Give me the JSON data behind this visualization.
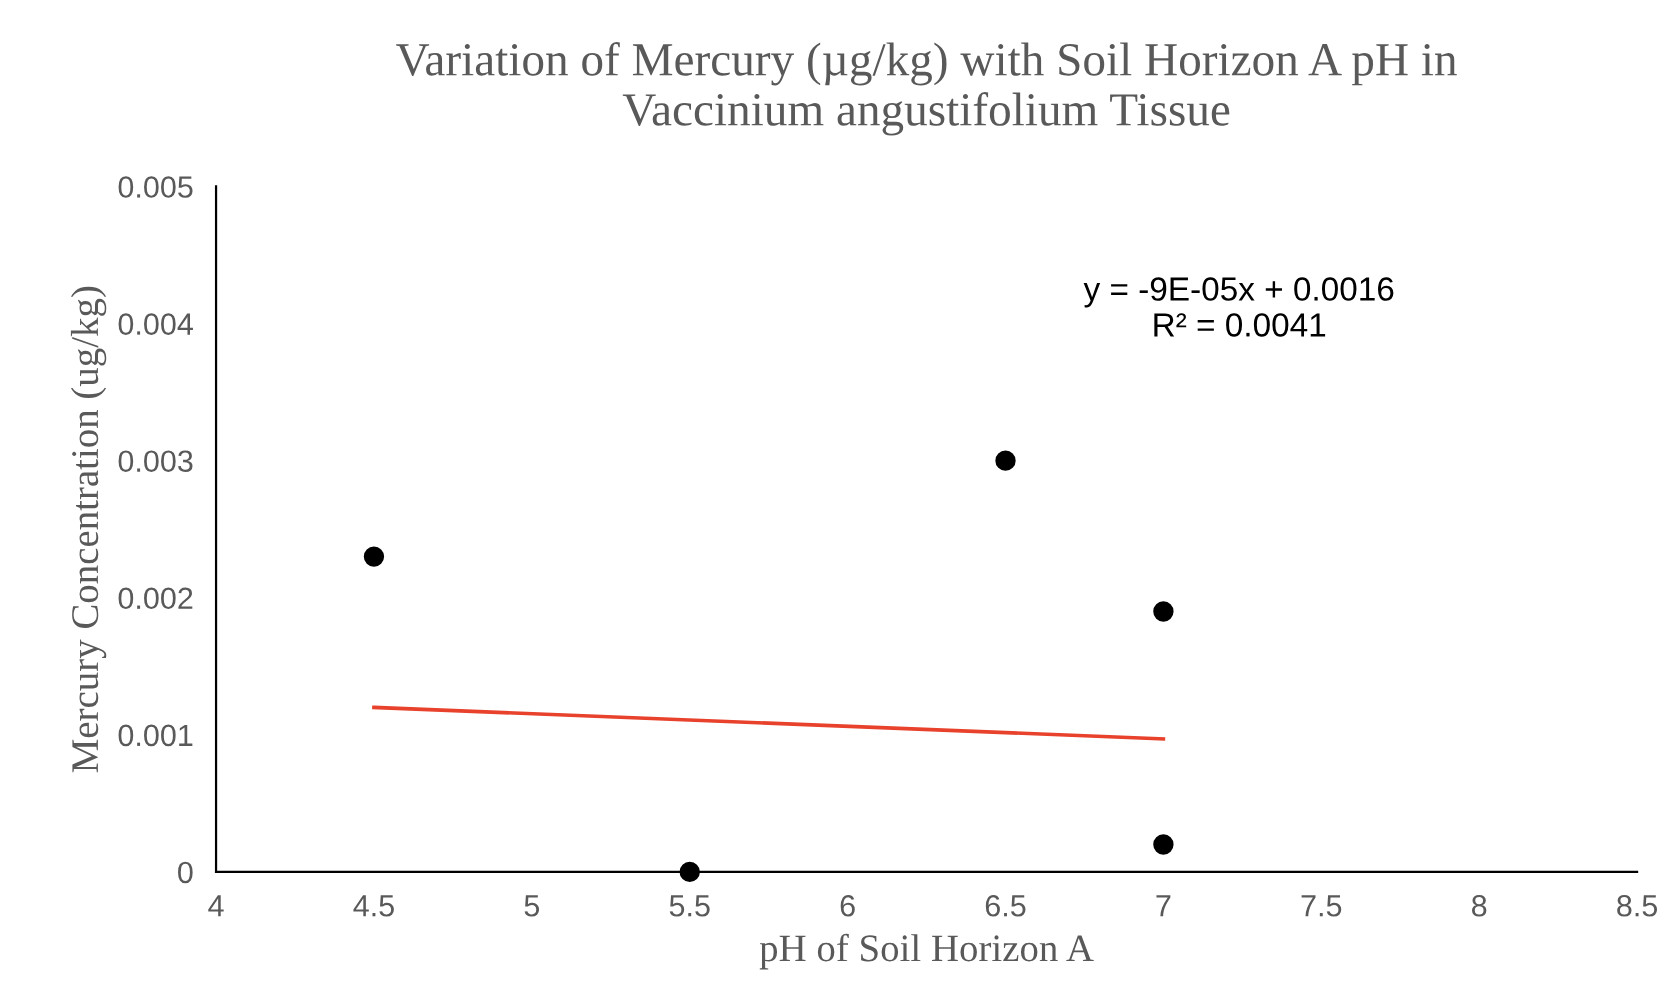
{
  "chart_data": {
    "type": "scatter",
    "title": "Variation of Mercury (µg/kg) with Soil Horizon A pH in\nVaccinium angustifolium Tissue",
    "xlabel": "pH of Soil Horizon A",
    "ylabel": "Mercury Concentration (ug/kg)",
    "series": [
      {
        "color": "#000000",
        "x": [
          4.5,
          5.5,
          6.5,
          7,
          7
        ],
        "values": [
          0.0023,
          0.0,
          0.003,
          0.0019,
          0.0002
        ]
      },
      {
        "type": "line",
        "marker": "none",
        "color": "#e8412c",
        "x": [
          4.5,
          7
        ],
        "values": [
          0.0012,
          0.00097
        ]
      }
    ],
    "annotations": [
      "y = -9E-05x + 0.0016\nR² = 0.0041"
    ],
    "xlim": [
      4,
      8.5
    ],
    "xticks": [
      4,
      4.5,
      5,
      5.5,
      6,
      6.5,
      7,
      7.5,
      8,
      8.5
    ],
    "ylim": [
      0,
      0.005
    ],
    "yticks": [
      0,
      0.001,
      0.002,
      0.003,
      0.004,
      0.005
    ],
    "grid": false,
    "legend": false,
    "marker": "circle"
  }
}
